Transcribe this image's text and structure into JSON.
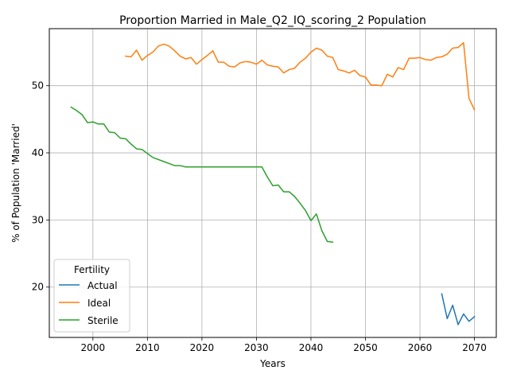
{
  "colors": {
    "Actual": "#1f77b4",
    "Ideal": "#ff7f0e",
    "Sterile": "#2ca02c",
    "grid": "#b0b0b0"
  },
  "chart_data": {
    "type": "line",
    "title": "Proportion Married in Male_Q2_IQ_scoring_2 Population",
    "xlabel": "Years",
    "ylabel": "% of Population 'Married'",
    "xlim": [
      1992,
      2074
    ],
    "ylim": [
      12.5,
      58.5
    ],
    "xticks": [
      2000,
      2010,
      2020,
      2030,
      2040,
      2050,
      2060,
      2070
    ],
    "yticks": [
      20,
      30,
      40,
      50
    ],
    "grid": true,
    "legend": {
      "title": "Fertility",
      "position": "lower left"
    },
    "series": [
      {
        "name": "Actual",
        "x": [
          2064,
          2065,
          2066,
          2067,
          2068,
          2069,
          2070
        ],
        "y": [
          19.0,
          15.3,
          17.3,
          14.4,
          16.0,
          14.9,
          15.6
        ]
      },
      {
        "name": "Ideal",
        "x": [
          2006,
          2007,
          2008,
          2009,
          2010,
          2011,
          2012,
          2013,
          2014,
          2015,
          2016,
          2017,
          2018,
          2019,
          2020,
          2021,
          2022,
          2023,
          2024,
          2025,
          2026,
          2027,
          2028,
          2029,
          2030,
          2031,
          2032,
          2033,
          2034,
          2035,
          2036,
          2037,
          2038,
          2039,
          2040,
          2041,
          2042,
          2043,
          2044,
          2045,
          2046,
          2047,
          2048,
          2049,
          2050,
          2051,
          2052,
          2053,
          2054,
          2055,
          2056,
          2057,
          2058,
          2059,
          2060,
          2061,
          2062,
          2063,
          2064,
          2065,
          2066,
          2067,
          2068,
          2069,
          2070
        ],
        "y": [
          54.4,
          54.3,
          55.3,
          53.8,
          54.5,
          55.0,
          55.9,
          56.2,
          55.9,
          55.2,
          54.4,
          54.0,
          54.2,
          53.2,
          53.9,
          54.5,
          55.2,
          53.5,
          53.5,
          52.9,
          52.8,
          53.4,
          53.6,
          53.5,
          53.2,
          53.8,
          53.1,
          52.9,
          52.8,
          51.9,
          52.4,
          52.6,
          53.5,
          54.1,
          55.0,
          55.6,
          55.3,
          54.4,
          54.2,
          52.4,
          52.2,
          51.9,
          52.3,
          51.5,
          51.3,
          50.1,
          50.1,
          50.0,
          51.7,
          51.3,
          52.7,
          52.4,
          54.1,
          54.1,
          54.2,
          53.9,
          53.8,
          54.2,
          54.3,
          54.7,
          55.6,
          55.7,
          56.4,
          48.1,
          46.4
        ]
      },
      {
        "name": "Sterile",
        "x": [
          1996,
          1997,
          1998,
          1999,
          2000,
          2001,
          2002,
          2003,
          2004,
          2005,
          2006,
          2007,
          2008,
          2009,
          2010,
          2011,
          2012,
          2013,
          2014,
          2015,
          2016,
          2017,
          2018,
          2019,
          2020,
          2021,
          2022,
          2023,
          2024,
          2025,
          2026,
          2027,
          2028,
          2029,
          2030,
          2031,
          2032,
          2033,
          2034,
          2035,
          2036,
          2037,
          2038,
          2039,
          2040,
          2041,
          2042,
          2043,
          2044
        ],
        "y": [
          46.8,
          46.3,
          45.7,
          44.5,
          44.6,
          44.3,
          44.3,
          43.1,
          43.0,
          42.2,
          42.1,
          41.3,
          40.6,
          40.5,
          39.9,
          39.3,
          39.0,
          38.7,
          38.4,
          38.1,
          38.1,
          37.9,
          37.9,
          37.9,
          37.9,
          37.9,
          37.9,
          37.9,
          37.9,
          37.9,
          37.9,
          37.9,
          37.9,
          37.9,
          37.9,
          37.9,
          36.4,
          35.1,
          35.2,
          34.2,
          34.2,
          33.5,
          32.5,
          31.4,
          29.9,
          30.9,
          28.4,
          26.8,
          26.7
        ]
      }
    ]
  }
}
